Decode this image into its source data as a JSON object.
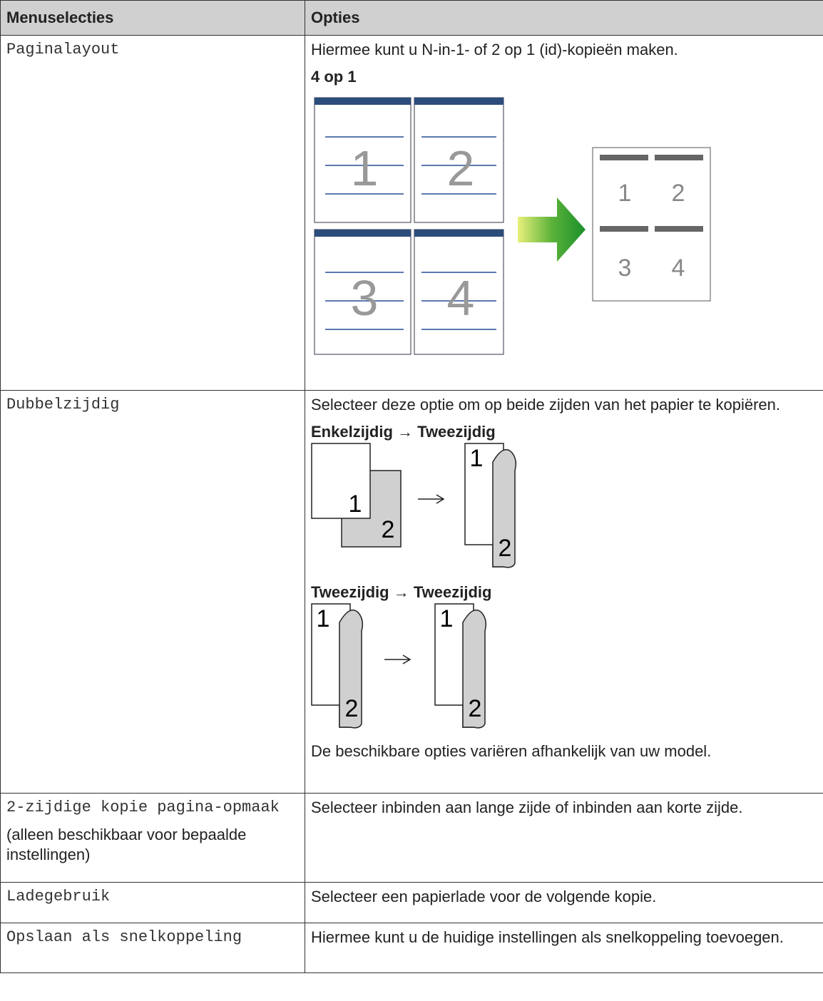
{
  "header": {
    "menu": "Menuselecties",
    "options": "Opties"
  },
  "rows": [
    {
      "menu": "Paginalayout",
      "text": "Hiermee kunt u N-in-1- of 2 op 1 (id)-kopieën maken.",
      "subheading": "4 op 1",
      "figure": {
        "pages": [
          "1",
          "2",
          "3",
          "4"
        ]
      }
    },
    {
      "menu": "Dubbelzijdig",
      "text": "Selecteer deze optie om op beide zijden van het papier te kopiëren.",
      "diagrams": [
        {
          "heading": "Enkelzijdig → Tweezijdig",
          "labels": [
            "1",
            "2",
            "1",
            "2"
          ]
        },
        {
          "heading": "Tweezijdig → Tweezijdig",
          "labels": [
            "1",
            "2",
            "1",
            "2"
          ]
        }
      ],
      "note": "De beschikbare opties variëren afhankelijk van uw model."
    },
    {
      "menu": "2-zijdige kopie pagina-opmaak",
      "menu_note": "(alleen beschikbaar voor bepaalde instellingen)",
      "text": "Selecteer inbinden aan lange zijde of inbinden aan korte zijde."
    },
    {
      "menu": "Ladegebruik",
      "text": "Selecteer een papierlade voor de volgende kopie."
    },
    {
      "menu": "Opslaan als snelkoppeling",
      "text": "Hiermee kunt u de huidige instellingen als snelkoppeling toevoegen."
    }
  ]
}
